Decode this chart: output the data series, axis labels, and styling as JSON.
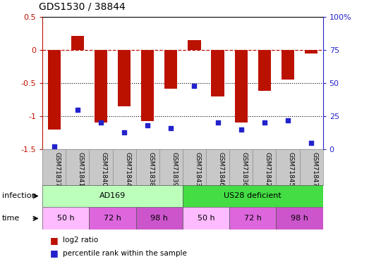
{
  "title": "GDS1530 / 38844",
  "samples": [
    "GSM71837",
    "GSM71841",
    "GSM71840",
    "GSM71844",
    "GSM71838",
    "GSM71839",
    "GSM71843",
    "GSM71846",
    "GSM71836",
    "GSM71842",
    "GSM71845",
    "GSM71847"
  ],
  "log2_ratio": [
    -1.2,
    0.22,
    -1.1,
    -0.85,
    -1.07,
    -0.58,
    0.15,
    -0.7,
    -1.1,
    -0.62,
    -0.45,
    -0.05
  ],
  "percentile_rank": [
    2,
    30,
    20,
    13,
    18,
    16,
    48,
    20,
    15,
    20,
    22,
    5
  ],
  "infection_groups": [
    {
      "label": "AD169",
      "start": 0,
      "end": 6,
      "color": "#BBFFBB"
    },
    {
      "label": "US28 deficient",
      "start": 6,
      "end": 12,
      "color": "#44DD44"
    }
  ],
  "time_groups": [
    {
      "label": "50 h",
      "start": 0,
      "end": 2,
      "color": "#FFBBFF"
    },
    {
      "label": "72 h",
      "start": 2,
      "end": 4,
      "color": "#DD66DD"
    },
    {
      "label": "98 h",
      "start": 4,
      "end": 6,
      "color": "#CC55CC"
    },
    {
      "label": "50 h",
      "start": 6,
      "end": 8,
      "color": "#FFBBFF"
    },
    {
      "label": "72 h",
      "start": 8,
      "end": 10,
      "color": "#DD66DD"
    },
    {
      "label": "98 h",
      "start": 10,
      "end": 12,
      "color": "#CC55CC"
    }
  ],
  "bar_color": "#BB1100",
  "dot_color": "#2222CC",
  "ylim_left": [
    -1.5,
    0.5
  ],
  "ylim_right": [
    0,
    100
  ],
  "yticks_left": [
    -1.5,
    -1.0,
    -0.5,
    0.0,
    0.5
  ],
  "yticks_right": [
    0,
    25,
    50,
    75,
    100
  ],
  "hline_y": 0,
  "dotted_lines": [
    -0.5,
    -1.0
  ],
  "bar_width": 0.55
}
